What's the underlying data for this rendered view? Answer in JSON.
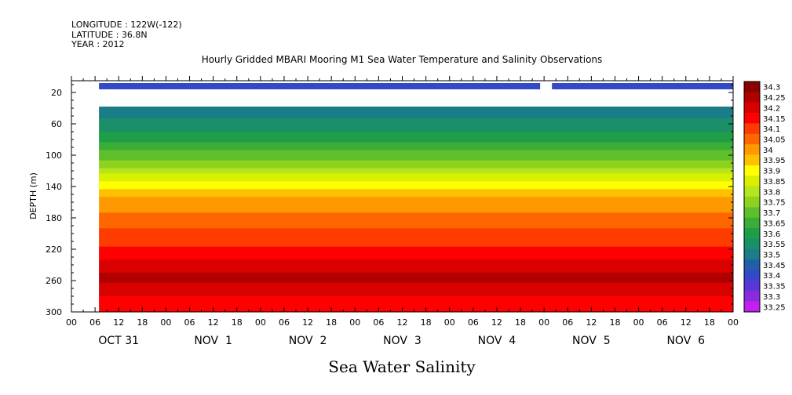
{
  "header": {
    "longitude": "LONGITUDE : 122W(-122)",
    "latitude": "LATITUDE : 36.8N",
    "year": "YEAR : 2012"
  },
  "chart_data": {
    "type": "heatmap",
    "title": "Hourly Gridded MBARI Mooring M1 Sea Water Temperature and Salinity Observations",
    "xlabel": "Sea Water Salinity",
    "ylabel": "DEPTH (m)",
    "x_range_hours": [
      0,
      168
    ],
    "ylim": [
      300,
      5
    ],
    "y_ticks": [
      20,
      60,
      100,
      140,
      180,
      220,
      260,
      300
    ],
    "x_hour_labels": [
      "00",
      "06",
      "12",
      "18",
      "00",
      "06",
      "12",
      "18",
      "00",
      "06",
      "12",
      "18",
      "00",
      "06",
      "12",
      "18",
      "00",
      "06",
      "12",
      "18",
      "00",
      "06",
      "12",
      "18",
      "00",
      "06",
      "12",
      "18",
      "00"
    ],
    "day_labels": [
      "OCT 31",
      "NOV  1",
      "NOV  2",
      "NOV  3",
      "NOV  4",
      "NOV  5",
      "NOV  6"
    ],
    "data_start_hour": 7,
    "surface_depth_range": [
      8,
      16
    ],
    "surface_gap_hours": [
      119,
      122
    ],
    "surface_value": 33.4,
    "missing_depth_range": [
      16,
      38
    ],
    "colorbar": {
      "levels": [
        "34.3",
        "34.25",
        "34.2",
        "34.15",
        "34.1",
        "34.05",
        "34",
        "33.95",
        "33.9",
        "33.85",
        "33.8",
        "33.75",
        "33.7",
        "33.65",
        "33.6",
        "33.55",
        "33.5",
        "33.45",
        "33.4",
        "33.35",
        "33.3",
        "33.25"
      ],
      "colors": [
        "#8b0000",
        "#b00000",
        "#d90000",
        "#ff0000",
        "#ff3c00",
        "#ff6600",
        "#ff9900",
        "#ffc000",
        "#ffff00",
        "#d9f000",
        "#b5e61d",
        "#8cd21e",
        "#5fbf2a",
        "#3aad36",
        "#1f9e48",
        "#1b8e6a",
        "#1a7d87",
        "#2060a8",
        "#3349c8",
        "#5a36d8",
        "#8b2be0",
        "#c020f0"
      ]
    },
    "profile": [
      {
        "depth": 38,
        "value": 33.52
      },
      {
        "depth": 60,
        "value": 33.57
      },
      {
        "depth": 80,
        "value": 33.64
      },
      {
        "depth": 100,
        "value": 33.72
      },
      {
        "depth": 120,
        "value": 33.82
      },
      {
        "depth": 140,
        "value": 33.94
      },
      {
        "depth": 160,
        "value": 34.02
      },
      {
        "depth": 180,
        "value": 34.07
      },
      {
        "depth": 200,
        "value": 34.11
      },
      {
        "depth": 220,
        "value": 34.16
      },
      {
        "depth": 240,
        "value": 34.22
      },
      {
        "depth": 255,
        "value": 34.26
      },
      {
        "depth": 270,
        "value": 34.24
      },
      {
        "depth": 285,
        "value": 34.18
      },
      {
        "depth": 300,
        "value": 34.17
      }
    ]
  }
}
